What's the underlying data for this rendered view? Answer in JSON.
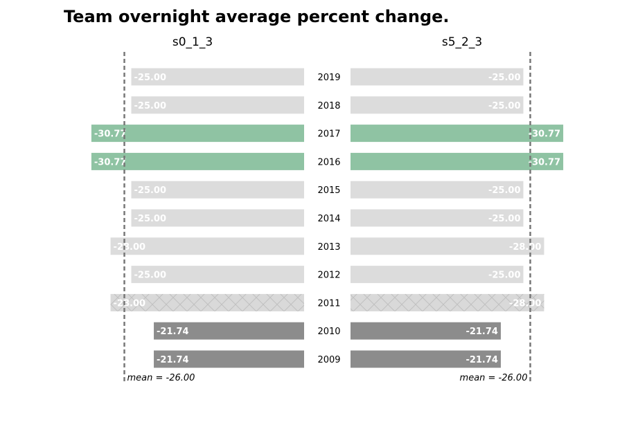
{
  "chart_data": {
    "type": "bar",
    "orientation": "horizontal",
    "title": "Team overnight average percent change.",
    "categories": [
      "2019",
      "2018",
      "2017",
      "2016",
      "2015",
      "2014",
      "2013",
      "2012",
      "2011",
      "2010",
      "2009"
    ],
    "series": [
      {
        "name": "s0_1_3",
        "values": [
          -25.0,
          -25.0,
          -30.77,
          -30.77,
          -25.0,
          -25.0,
          -28.0,
          -25.0,
          -28.0,
          -21.74,
          -21.74
        ],
        "labels": [
          "-25.00",
          "-25.00",
          "-30.77",
          "-30.77",
          "-25.00",
          "-25.00",
          "-28.00",
          "-25.00",
          "-28.00",
          "-21.74",
          "-21.74"
        ],
        "mean": -26.0,
        "mean_label": "mean = -26.00"
      },
      {
        "name": "s5_2_3",
        "values": [
          -25.0,
          -25.0,
          -30.77,
          -30.77,
          -25.0,
          -25.0,
          -28.0,
          -25.0,
          -28.0,
          -21.74,
          -21.74
        ],
        "labels": [
          "-25.00",
          "-25.00",
          "-30.77",
          "-30.77",
          "-25.00",
          "-25.00",
          "-28.00",
          "-25.00",
          "-28.00",
          "-21.74",
          "-21.74"
        ],
        "mean": -26.0,
        "mean_label": "mean = -26.00"
      }
    ],
    "styles": {
      "2017": "highlight",
      "2016": "highlight",
      "2011": "hatched",
      "2010": "dark",
      "2009": "dark"
    },
    "colors": {
      "default": "#dcdcdc",
      "highlight": "#8fc3a3",
      "dark": "#8c8c8c",
      "hatched": "#d9d9d9",
      "hatch_line": "#c0c0c0",
      "mean_line": "#777777",
      "label": "#ffffff"
    },
    "xlim": [
      0,
      -32
    ]
  }
}
